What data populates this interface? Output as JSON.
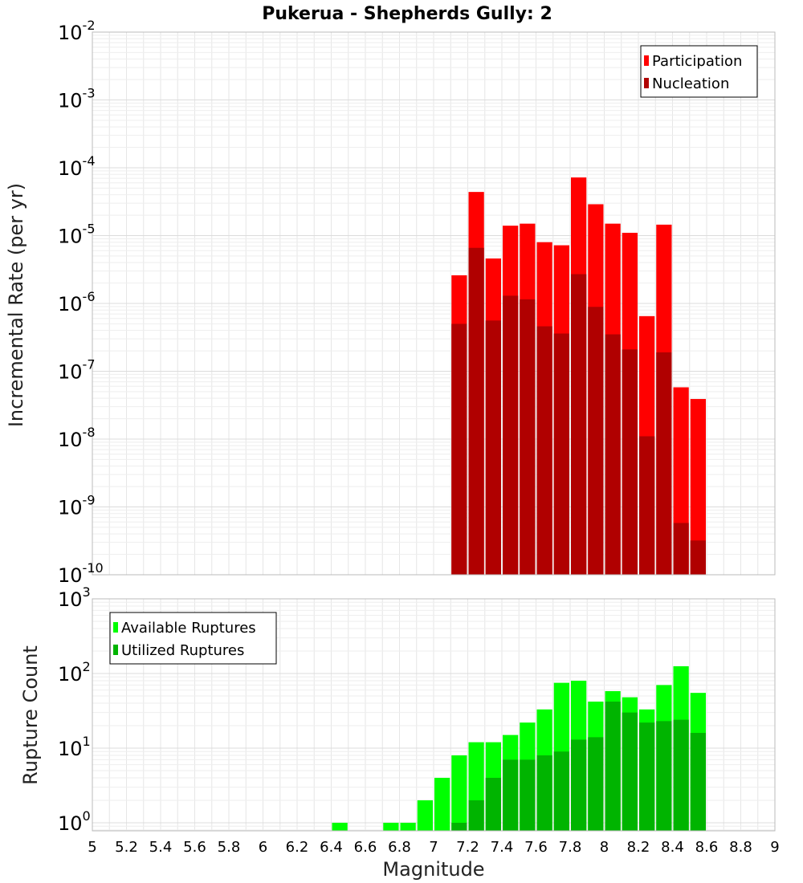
{
  "title": "Pukerua - Shepherds Gully: 2",
  "xlabel": "Magnitude",
  "x_ticks": [
    "5",
    "5.2",
    "5.4",
    "5.6",
    "5.8",
    "6",
    "6.2",
    "6.4",
    "6.6",
    "6.8",
    "7",
    "7.2",
    "7.4",
    "7.6",
    "7.8",
    "8",
    "8.2",
    "8.4",
    "8.6",
    "8.8",
    "9"
  ],
  "colors": {
    "participation": "#ff0000",
    "nucleation": "#b00000",
    "available": "#00ff00",
    "utilized": "#00b400",
    "grid": "#e6e6e6",
    "border": "#bbbbbb"
  },
  "chart_data": [
    {
      "type": "bar",
      "ylabel": "Incremental Rate (per yr)",
      "yscale": "log",
      "ylim": [
        1e-10,
        0.01
      ],
      "xlim": [
        5,
        9
      ],
      "y_ticks": [
        {
          "base": "10",
          "exp": "-10"
        },
        {
          "base": "10",
          "exp": "-9"
        },
        {
          "base": "10",
          "exp": "-8"
        },
        {
          "base": "10",
          "exp": "-7"
        },
        {
          "base": "10",
          "exp": "-6"
        },
        {
          "base": "10",
          "exp": "-5"
        },
        {
          "base": "10",
          "exp": "-4"
        },
        {
          "base": "10",
          "exp": "-3"
        },
        {
          "base": "10",
          "exp": "-2"
        }
      ],
      "legend": {
        "position": "top-right",
        "items": [
          "Participation",
          "Nucleation"
        ]
      },
      "x": [
        7.15,
        7.25,
        7.35,
        7.45,
        7.55,
        7.65,
        7.75,
        7.85,
        7.95,
        8.05,
        8.15,
        8.25,
        8.35,
        8.45,
        8.55
      ],
      "series": [
        {
          "name": "Participation",
          "values": [
            2.6e-06,
            4.4e-05,
            4.6e-06,
            1.4e-05,
            1.5e-05,
            8e-06,
            7.2e-06,
            7.2e-05,
            2.9e-05,
            1.5e-05,
            1.1e-05,
            6.5e-07,
            1.45e-05,
            5.8e-08,
            3.9e-08
          ]
        },
        {
          "name": "Nucleation",
          "values": [
            5e-07,
            6.6e-06,
            5.6e-07,
            1.3e-06,
            1.15e-06,
            4.6e-07,
            3.6e-07,
            2.7e-06,
            8.9e-07,
            3.5e-07,
            2.1e-07,
            1.1e-08,
            1.9e-07,
            5.8e-10,
            3.2e-10
          ]
        }
      ]
    },
    {
      "type": "bar",
      "ylabel": "Rupture Count",
      "yscale": "log",
      "ylim": [
        0.78,
        1000
      ],
      "xlim": [
        5,
        9
      ],
      "y_ticks": [
        {
          "base": "10",
          "exp": "0"
        },
        {
          "base": "10",
          "exp": "1"
        },
        {
          "base": "10",
          "exp": "2"
        },
        {
          "base": "10",
          "exp": "3"
        }
      ],
      "legend": {
        "position": "top-left",
        "items": [
          "Available Ruptures",
          "Utilized Ruptures"
        ]
      },
      "x": [
        6.45,
        6.75,
        6.85,
        6.95,
        7.05,
        7.15,
        7.25,
        7.35,
        7.45,
        7.55,
        7.65,
        7.75,
        7.85,
        7.95,
        8.05,
        8.15,
        8.25,
        8.35,
        8.45,
        8.55
      ],
      "series": [
        {
          "name": "Available Ruptures",
          "values": [
            1,
            1,
            1,
            2,
            4,
            8,
            12,
            12,
            15,
            22,
            33,
            75,
            80,
            42,
            58,
            48,
            33,
            70,
            125,
            55
          ]
        },
        {
          "name": "Utilized Ruptures",
          "values": [
            0,
            0,
            0,
            0,
            0,
            1,
            2,
            4,
            7,
            7,
            8,
            9,
            13,
            14,
            42,
            30,
            22,
            23,
            24,
            16
          ]
        }
      ]
    }
  ]
}
